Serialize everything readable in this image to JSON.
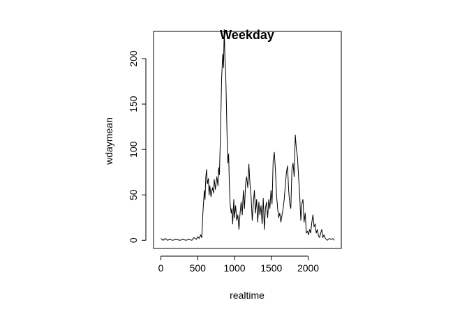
{
  "chart_data": {
    "type": "line",
    "title": "Weekday",
    "xlabel": "realtime",
    "ylabel": "wdaymean",
    "xlim": [
      -100,
      2450
    ],
    "ylim": [
      -9,
      230
    ],
    "x_ticks": [
      0,
      500,
      1000,
      1500,
      2000
    ],
    "x_tick_labels": [
      "0",
      "500",
      "1000",
      "1500",
      "2000"
    ],
    "y_ticks": [
      0,
      50,
      100,
      150,
      200
    ],
    "y_tick_labels": [
      "0",
      "50",
      "100",
      "150",
      "200"
    ],
    "grid": false,
    "series": [
      {
        "color": "#000000",
        "points": [
          [
            0,
            2
          ],
          [
            30,
            0
          ],
          [
            60,
            2
          ],
          [
            90,
            0
          ],
          [
            120,
            1
          ],
          [
            160,
            0
          ],
          [
            200,
            1
          ],
          [
            260,
            0
          ],
          [
            300,
            1
          ],
          [
            340,
            0
          ],
          [
            380,
            1
          ],
          [
            420,
            0
          ],
          [
            450,
            3
          ],
          [
            480,
            1
          ],
          [
            500,
            4
          ],
          [
            520,
            2
          ],
          [
            540,
            6
          ],
          [
            555,
            3
          ],
          [
            570,
            30
          ],
          [
            590,
            55
          ],
          [
            600,
            45
          ],
          [
            610,
            70
          ],
          [
            620,
            78
          ],
          [
            630,
            62
          ],
          [
            645,
            68
          ],
          [
            655,
            50
          ],
          [
            665,
            60
          ],
          [
            680,
            48
          ],
          [
            700,
            58
          ],
          [
            715,
            52
          ],
          [
            725,
            67
          ],
          [
            740,
            56
          ],
          [
            760,
            70
          ],
          [
            775,
            60
          ],
          [
            785,
            80
          ],
          [
            795,
            72
          ],
          [
            810,
            120
          ],
          [
            825,
            180
          ],
          [
            840,
            205
          ],
          [
            850,
            190
          ],
          [
            860,
            232
          ],
          [
            870,
            200
          ],
          [
            880,
            185
          ],
          [
            890,
            150
          ],
          [
            900,
            110
          ],
          [
            910,
            85
          ],
          [
            920,
            95
          ],
          [
            930,
            60
          ],
          [
            940,
            40
          ],
          [
            955,
            30
          ],
          [
            965,
            35
          ],
          [
            975,
            18
          ],
          [
            990,
            45
          ],
          [
            1000,
            25
          ],
          [
            1015,
            38
          ],
          [
            1030,
            22
          ],
          [
            1045,
            28
          ],
          [
            1060,
            12
          ],
          [
            1075,
            30
          ],
          [
            1090,
            42
          ],
          [
            1105,
            28
          ],
          [
            1120,
            55
          ],
          [
            1135,
            35
          ],
          [
            1150,
            62
          ],
          [
            1165,
            70
          ],
          [
            1180,
            58
          ],
          [
            1195,
            84
          ],
          [
            1210,
            62
          ],
          [
            1225,
            48
          ],
          [
            1240,
            22
          ],
          [
            1255,
            40
          ],
          [
            1270,
            55
          ],
          [
            1285,
            30
          ],
          [
            1300,
            45
          ],
          [
            1315,
            20
          ],
          [
            1330,
            42
          ],
          [
            1345,
            28
          ],
          [
            1360,
            38
          ],
          [
            1375,
            18
          ],
          [
            1390,
            46
          ],
          [
            1405,
            12
          ],
          [
            1420,
            35
          ],
          [
            1435,
            42
          ],
          [
            1450,
            25
          ],
          [
            1465,
            45
          ],
          [
            1480,
            35
          ],
          [
            1495,
            55
          ],
          [
            1510,
            40
          ],
          [
            1525,
            88
          ],
          [
            1540,
            97
          ],
          [
            1555,
            78
          ],
          [
            1570,
            50
          ],
          [
            1585,
            35
          ],
          [
            1600,
            25
          ],
          [
            1615,
            30
          ],
          [
            1630,
            20
          ],
          [
            1645,
            28
          ],
          [
            1660,
            35
          ],
          [
            1675,
            45
          ],
          [
            1690,
            60
          ],
          [
            1705,
            75
          ],
          [
            1720,
            82
          ],
          [
            1735,
            55
          ],
          [
            1750,
            40
          ],
          [
            1765,
            35
          ],
          [
            1780,
            78
          ],
          [
            1795,
            85
          ],
          [
            1810,
            70
          ],
          [
            1825,
            116
          ],
          [
            1840,
            100
          ],
          [
            1855,
            92
          ],
          [
            1870,
            70
          ],
          [
            1885,
            50
          ],
          [
            1900,
            22
          ],
          [
            1915,
            40
          ],
          [
            1930,
            45
          ],
          [
            1945,
            20
          ],
          [
            1960,
            30
          ],
          [
            1975,
            8
          ],
          [
            1990,
            10
          ],
          [
            2005,
            6
          ],
          [
            2020,
            12
          ],
          [
            2035,
            8
          ],
          [
            2050,
            20
          ],
          [
            2065,
            28
          ],
          [
            2080,
            15
          ],
          [
            2095,
            18
          ],
          [
            2110,
            8
          ],
          [
            2125,
            12
          ],
          [
            2140,
            5
          ],
          [
            2155,
            3
          ],
          [
            2170,
            8
          ],
          [
            2185,
            12
          ],
          [
            2200,
            3
          ],
          [
            2215,
            6
          ],
          [
            2235,
            2
          ],
          [
            2260,
            0
          ],
          [
            2285,
            2
          ],
          [
            2310,
            1
          ],
          [
            2335,
            2
          ],
          [
            2355,
            0
          ]
        ]
      }
    ]
  }
}
